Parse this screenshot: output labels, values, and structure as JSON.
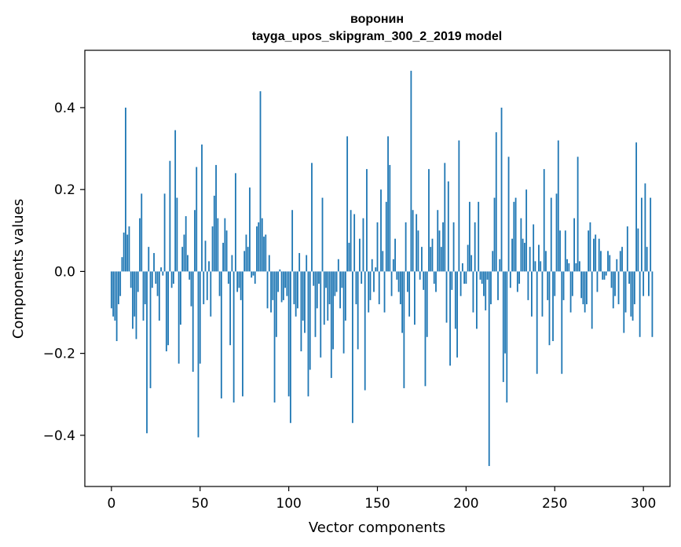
{
  "chart_data": {
    "type": "bar",
    "title": "воронин",
    "subtitle": "tayga_upos_skipgram_300_2_2019 model",
    "xlabel": "Vector components",
    "ylabel": "Components values",
    "xlim": [
      -15,
      315
    ],
    "ylim": [
      -0.525,
      0.54
    ],
    "xticks": [
      0,
      50,
      100,
      150,
      200,
      250,
      300
    ],
    "yticks": [
      -0.4,
      -0.2,
      0.0,
      0.2,
      0.4
    ],
    "ytick_labels": [
      "−0.4",
      "−0.2",
      "0.0",
      "0.2",
      "0.4"
    ],
    "grid": false,
    "bar_color": "#1f77b4",
    "values": [
      -0.09,
      -0.11,
      -0.12,
      -0.17,
      -0.08,
      -0.06,
      0.035,
      0.095,
      0.4,
      0.09,
      0.11,
      -0.04,
      -0.14,
      -0.11,
      -0.165,
      -0.05,
      0.13,
      0.19,
      -0.12,
      -0.08,
      -0.395,
      0.06,
      -0.285,
      -0.04,
      0.045,
      -0.03,
      -0.06,
      -0.12,
      0.01,
      -0.01,
      0.19,
      -0.195,
      -0.18,
      0.27,
      -0.04,
      -0.03,
      0.345,
      0.18,
      -0.225,
      -0.13,
      0.06,
      0.09,
      0.135,
      0.04,
      -0.02,
      -0.085,
      -0.245,
      0.15,
      0.255,
      -0.405,
      -0.225,
      0.31,
      -0.08,
      0.075,
      -0.07,
      0.025,
      -0.11,
      0.11,
      0.185,
      0.26,
      0.13,
      -0.06,
      -0.31,
      0.07,
      0.13,
      0.1,
      -0.03,
      -0.18,
      0.04,
      -0.32,
      0.24,
      -0.05,
      -0.04,
      -0.07,
      -0.305,
      0.05,
      0.09,
      0.06,
      0.205,
      -0.015,
      -0.01,
      -0.03,
      0.11,
      0.12,
      0.44,
      0.13,
      0.085,
      0.09,
      -0.09,
      0.04,
      -0.1,
      -0.07,
      -0.32,
      -0.16,
      -0.05,
      0.005,
      -0.075,
      -0.07,
      -0.04,
      -0.06,
      -0.305,
      -0.37,
      0.15,
      -0.08,
      -0.11,
      -0.09,
      0.045,
      -0.195,
      -0.12,
      -0.15,
      0.04,
      -0.305,
      -0.24,
      0.265,
      -0.035,
      -0.16,
      -0.09,
      -0.03,
      -0.21,
      0.18,
      -0.13,
      -0.04,
      -0.12,
      -0.08,
      -0.26,
      -0.19,
      -0.06,
      -0.05,
      0.03,
      -0.09,
      -0.04,
      -0.2,
      -0.12,
      0.33,
      0.07,
      0.15,
      -0.37,
      0.14,
      -0.08,
      -0.19,
      0.08,
      -0.03,
      0.13,
      -0.29,
      0.25,
      -0.1,
      -0.07,
      0.03,
      -0.05,
      0.01,
      0.12,
      -0.08,
      0.2,
      0.05,
      -0.1,
      0.17,
      0.33,
      0.26,
      -0.06,
      0.03,
      0.08,
      -0.02,
      -0.05,
      -0.08,
      -0.15,
      -0.285,
      0.12,
      -0.05,
      -0.11,
      0.49,
      0.15,
      -0.13,
      0.14,
      0.1,
      -0.02,
      0.06,
      -0.045,
      -0.28,
      -0.16,
      0.25,
      0.06,
      0.08,
      -0.03,
      -0.05,
      0.15,
      0.1,
      0.06,
      0.12,
      0.265,
      -0.125,
      0.22,
      -0.23,
      -0.045,
      0.12,
      -0.14,
      -0.21,
      0.32,
      -0.06,
      0.02,
      -0.03,
      -0.03,
      0.065,
      0.17,
      0.04,
      -0.1,
      0.12,
      -0.14,
      0.17,
      -0.02,
      -0.03,
      -0.06,
      -0.095,
      -0.02,
      -0.475,
      -0.08,
      0.05,
      0.18,
      0.34,
      -0.07,
      0.03,
      0.4,
      -0.27,
      -0.2,
      -0.32,
      0.28,
      -0.04,
      0.08,
      0.17,
      0.18,
      -0.05,
      -0.03,
      0.13,
      0.08,
      0.07,
      0.2,
      -0.07,
      0.06,
      -0.11,
      0.115,
      0.025,
      -0.25,
      0.065,
      0.025,
      -0.11,
      0.25,
      0.05,
      -0.07,
      -0.18,
      0.18,
      -0.17,
      -0.06,
      0.19,
      0.32,
      0.1,
      -0.25,
      -0.07,
      0.1,
      0.03,
      0.02,
      -0.1,
      -0.06,
      0.13,
      0.02,
      0.28,
      0.025,
      -0.065,
      -0.08,
      -0.1,
      -0.08,
      0.1,
      0.12,
      -0.14,
      0.08,
      0.09,
      -0.05,
      0.08,
      0.05,
      -0.02,
      -0.02,
      -0.01,
      0.05,
      0.04,
      -0.04,
      -0.09,
      -0.06,
      0.03,
      -0.08,
      0.05,
      0.06,
      -0.15,
      -0.1,
      0.11,
      -0.03,
      -0.11,
      -0.12,
      -0.08,
      0.315,
      0.105,
      -0.16,
      0.18,
      -0.06,
      0.215,
      0.06,
      -0.06,
      0.18,
      -0.16
    ]
  }
}
